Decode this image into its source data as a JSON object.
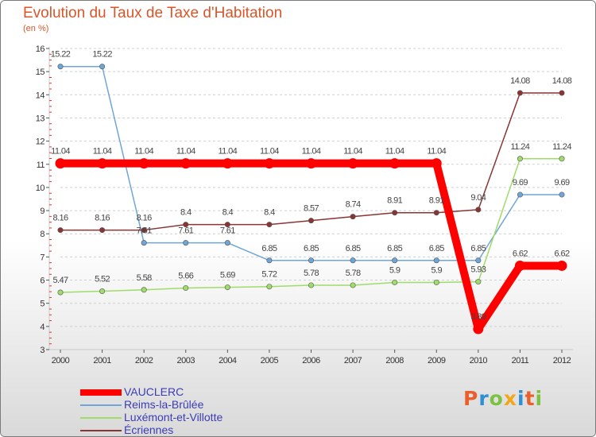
{
  "header": {
    "title": "Evolution du Taux de Taxe d'Habitation",
    "subtitle": "(en %)"
  },
  "chart_data": {
    "type": "line",
    "title": "Evolution du Taux de Taxe d'Habitation",
    "subtitle": "(en %)",
    "xlabel": "",
    "ylabel": "",
    "categories": [
      "2000",
      "2001",
      "2002",
      "2003",
      "2004",
      "2005",
      "2006",
      "2007",
      "2008",
      "2009",
      "2010",
      "2011",
      "2012"
    ],
    "y_ticks": [
      3,
      4,
      5,
      6,
      7,
      8,
      9,
      10,
      11,
      12,
      13,
      14,
      15,
      16
    ],
    "ylim": [
      3,
      16
    ],
    "grid": "horizontal-dashed",
    "legend_position": "bottom-left",
    "series": [
      {
        "name": "VAUCLERC",
        "color": "#ff0000",
        "values": [
          11.04,
          11.04,
          11.04,
          11.04,
          11.04,
          11.04,
          11.04,
          11.04,
          11.04,
          11.04,
          3.89,
          6.62,
          6.62
        ]
      },
      {
        "name": "Reims-la-Brûlée",
        "color": "#6fa6d8",
        "values": [
          15.22,
          15.22,
          7.61,
          7.61,
          7.61,
          6.85,
          6.85,
          6.85,
          6.85,
          6.85,
          6.85,
          9.69,
          9.69
        ]
      },
      {
        "name": "Luxémont-et-Villotte",
        "color": "#9fdc6a",
        "values": [
          5.47,
          5.52,
          5.58,
          5.66,
          5.69,
          5.72,
          5.78,
          5.78,
          5.9,
          5.9,
          5.93,
          11.24,
          11.24
        ]
      },
      {
        "name": "Écriennes",
        "color": "#8a3434",
        "values": [
          8.16,
          8.16,
          8.16,
          8.4,
          8.4,
          8.4,
          8.57,
          8.74,
          8.91,
          8.91,
          9.04,
          14.08,
          14.08
        ]
      }
    ]
  },
  "logo": {
    "text": "Proxiti",
    "letter_colors": [
      "#e8612c",
      "#2e8fd6",
      "#7cc242",
      "#f2a71b",
      "#2e8fd6",
      "#e8612c",
      "#7cc242"
    ]
  }
}
